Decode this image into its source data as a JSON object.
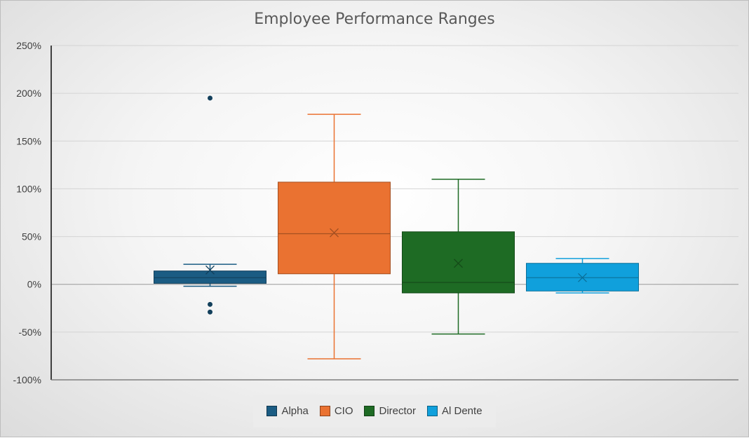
{
  "chart_data": {
    "type": "box",
    "title": "Employee Performance Ranges",
    "xlabel": "",
    "ylabel": "",
    "ylim": [
      -100,
      250
    ],
    "y_ticks": [
      "-100%",
      "-50%",
      "0%",
      "50%",
      "100%",
      "150%",
      "200%",
      "250%"
    ],
    "y_tick_values": [
      -100,
      -50,
      0,
      50,
      100,
      150,
      200,
      250
    ],
    "grid": true,
    "legend_position": "bottom",
    "series": [
      {
        "name": "Alpha",
        "color": "#1b5c83",
        "min": -2,
        "q1": 1,
        "median": 7,
        "q3": 14,
        "max": 21,
        "mean": 15,
        "outliers": [
          195,
          -21,
          -29
        ]
      },
      {
        "name": "CIO",
        "color": "#ea7231",
        "min": -78,
        "q1": 11,
        "median": 53,
        "q3": 107,
        "max": 178,
        "mean": 54,
        "outliers": []
      },
      {
        "name": "Director",
        "color": "#1e6b24",
        "min": -52,
        "q1": -9,
        "median": 2,
        "q3": 55,
        "max": 110,
        "mean": 22,
        "outliers": []
      },
      {
        "name": "Al Dente",
        "color": "#10a0dc",
        "min": -9,
        "q1": -7,
        "median": 7,
        "q3": 22,
        "max": 27,
        "mean": 7,
        "outliers": []
      }
    ]
  }
}
